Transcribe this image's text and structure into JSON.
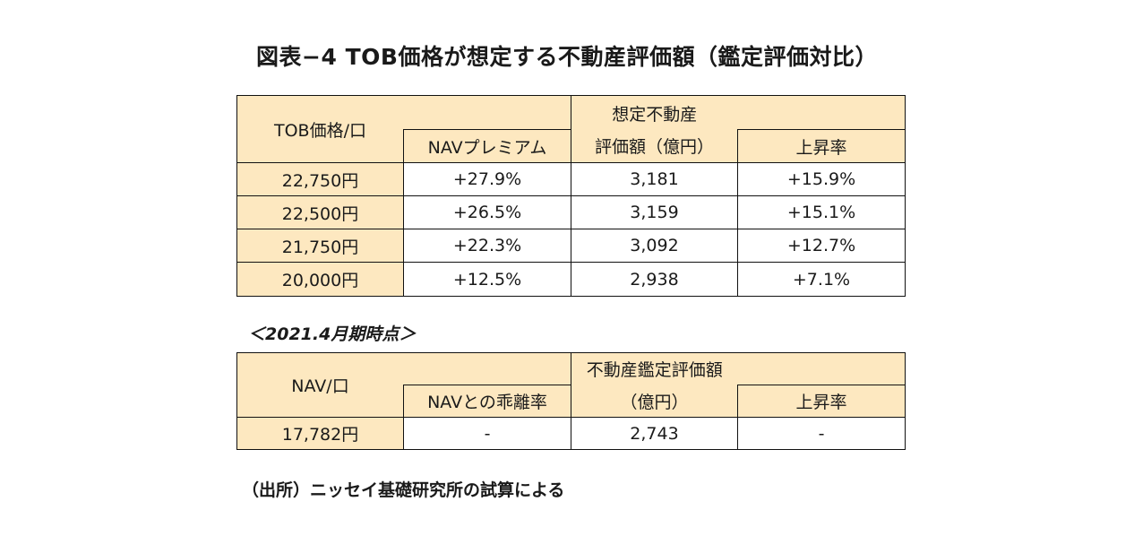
{
  "title": "図表−4 TOB価格が想定する不動産評価額（鑑定評価対比）",
  "table1": {
    "header": {
      "col1": "TOB価格/口",
      "col2": "NAVプレミアム",
      "col3_top": "想定不動産",
      "col3_bottom": "評価額（億円）",
      "col4": "上昇率"
    },
    "rows": [
      {
        "price": "22,750円",
        "premium": "+27.9%",
        "value": "3,181",
        "rate": "+15.9%"
      },
      {
        "price": "22,500円",
        "premium": "+26.5%",
        "value": "3,159",
        "rate": "+15.1%"
      },
      {
        "price": "21,750円",
        "premium": "+22.3%",
        "value": "3,092",
        "rate": "+12.7%"
      },
      {
        "price": "20,000円",
        "premium": "+12.5%",
        "value": "2,938",
        "rate": "+7.1%"
      }
    ]
  },
  "note": "＜2021.4月期時点＞",
  "table2": {
    "header": {
      "col1": "NAV/口",
      "col2": "NAVとの乖離率",
      "col3_top": "不動産鑑定評価額",
      "col3_bottom": "（億円）",
      "col4": "上昇率"
    },
    "rows": [
      {
        "nav": "17,782円",
        "divergence": "-",
        "value": "2,743",
        "rate": "-"
      }
    ]
  },
  "source": "（出所）ニッセイ基礎研究所の試算による",
  "colors": {
    "header_fill": "#fde8c0",
    "border": "#111111"
  }
}
